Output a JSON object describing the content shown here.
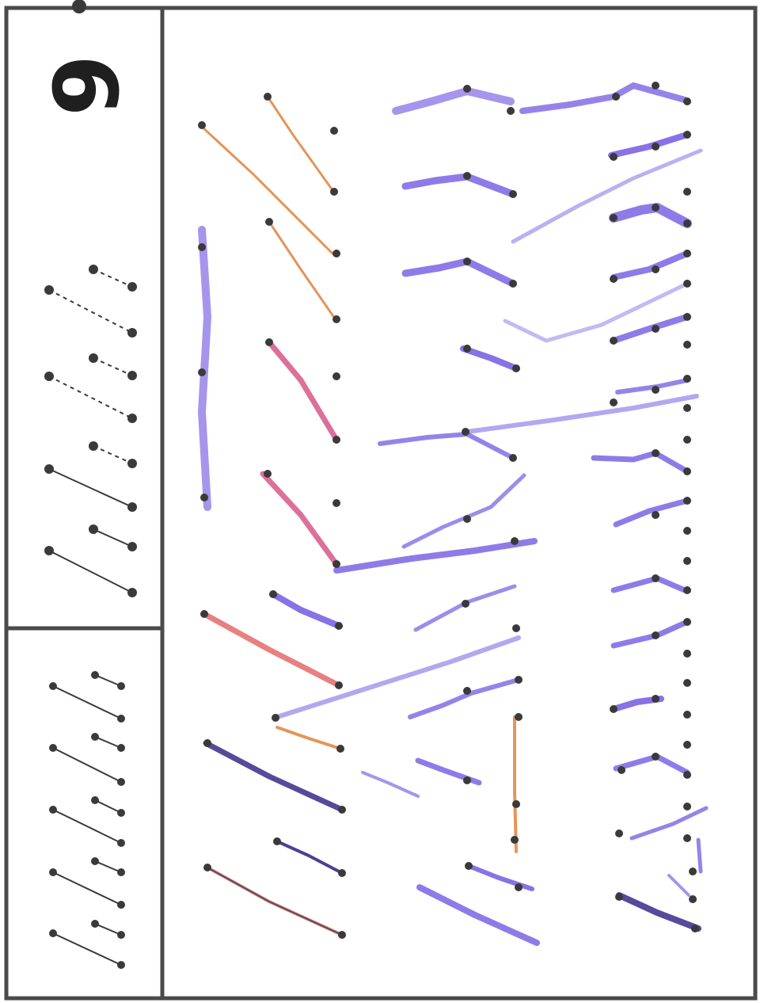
{
  "worksheet": {
    "page_number": "6",
    "colors": {
      "frame": "#4a4a4a",
      "dot": "#3a3a3a",
      "guide_line": "#3a3a3a",
      "purple_crayon": "#6a4fe0",
      "orange_crayon": "#e08a4a",
      "magenta_crayon": "#d0407a",
      "red_crayon": "#e04a4a",
      "dark_purple_crayon": "#3a2a8a"
    },
    "icons": [
      "dot-marker",
      "crayon-stroke"
    ]
  }
}
